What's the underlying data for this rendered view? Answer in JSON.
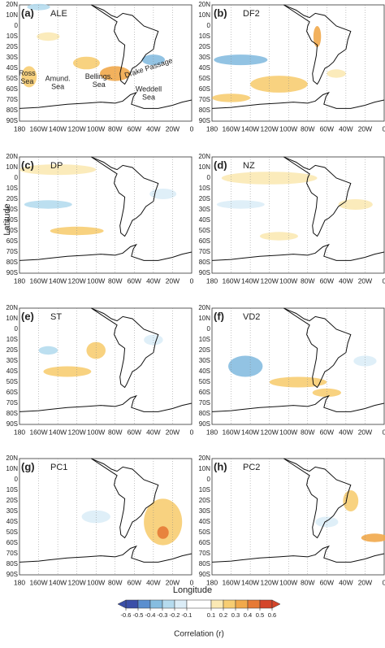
{
  "y_axis_label": "Latitude",
  "x_axis_label": "Longitude",
  "lat_ticks": [
    "20N",
    "10N",
    "0",
    "10S",
    "20S",
    "30S",
    "40S",
    "50S",
    "60S",
    "70S",
    "80S",
    "90S"
  ],
  "lon_ticks": [
    "180",
    "160W",
    "140W",
    "120W",
    "100W",
    "80W",
    "60W",
    "40W",
    "20W",
    "0"
  ],
  "panels": [
    {
      "label": "(a)",
      "name": "ALE",
      "annotations": [
        [
          "Ross",
          "Sea"
        ],
        [
          "Amund.",
          "Sea"
        ],
        [
          "Bellings.",
          "Sea"
        ],
        [
          "Drake Passage"
        ],
        [
          "Weddell",
          "Sea"
        ]
      ]
    },
    {
      "label": "(b)",
      "name": "DF2"
    },
    {
      "label": "(c)",
      "name": "DP"
    },
    {
      "label": "(d)",
      "name": "NZ"
    },
    {
      "label": "(e)",
      "name": "ST"
    },
    {
      "label": "(f)",
      "name": "VD2"
    },
    {
      "label": "(g)",
      "name": "PC1"
    },
    {
      "label": "(h)",
      "name": "PC2"
    }
  ],
  "colorbar": {
    "label": "Correlation (r)",
    "ticks": [
      -0.6,
      -0.5,
      -0.4,
      -0.3,
      -0.2,
      -0.1,
      0.1,
      0.2,
      0.3,
      0.4,
      0.5,
      0.6
    ],
    "colors": [
      "#3b4fa8",
      "#5b8fcf",
      "#86bde0",
      "#b5dbee",
      "#dcedf7",
      "#ffffff",
      "#fbe9b4",
      "#f7cd72",
      "#f1a94b",
      "#e67a35",
      "#d4452a"
    ]
  }
}
